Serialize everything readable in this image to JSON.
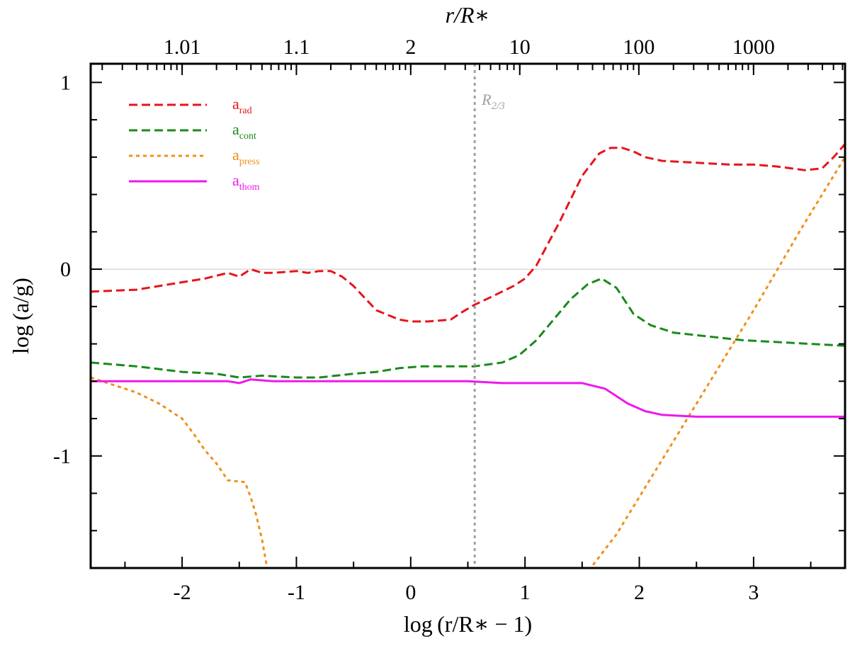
{
  "chart_data": {
    "type": "line",
    "xlabel": "log (r/R∗ − 1)",
    "ylabel": "log (a/g)",
    "top_xlabel": "r/R∗",
    "xlim": [
      -2.8,
      3.8
    ],
    "ylim": [
      -1.6,
      1.1
    ],
    "x_ticks": [
      -2,
      -1,
      0,
      1,
      2,
      3
    ],
    "x_tick_labels": [
      "-2",
      "-1",
      "0",
      "1",
      "2",
      "3"
    ],
    "y_ticks": [
      1,
      0,
      -1
    ],
    "y_tick_labels": [
      "1",
      "0",
      "-1"
    ],
    "top_axis_ticks": [
      {
        "label": "1.01",
        "value": -2.0
      },
      {
        "label": "1.1",
        "value": -1.0
      },
      {
        "label": "2",
        "value": 0.0
      },
      {
        "label": "10",
        "value": 0.954
      },
      {
        "label": "100",
        "value": 1.996
      },
      {
        "label": "1000",
        "value": 2.9996
      }
    ],
    "zero_line": 0,
    "annotation": {
      "base": "R",
      "sub": "2/3",
      "x": 0.56
    },
    "legend_position": "top-left",
    "series": [
      {
        "name_base": "a",
        "name_sub": "rad",
        "color": "#e8141c",
        "dash": "dashed",
        "x": [
          -2.8,
          -2.4,
          -2.0,
          -1.8,
          -1.6,
          -1.5,
          -1.4,
          -1.3,
          -1.2,
          -1.0,
          -0.9,
          -0.8,
          -0.7,
          -0.6,
          -0.5,
          -0.3,
          -0.1,
          0.0,
          0.15,
          0.35,
          0.45,
          0.56,
          0.7,
          0.8,
          0.9,
          1.0,
          1.1,
          1.3,
          1.5,
          1.65,
          1.75,
          1.85,
          1.95,
          2.05,
          2.2,
          2.5,
          2.8,
          3.0,
          3.2,
          3.45,
          3.6,
          3.7,
          3.8
        ],
        "y": [
          -0.12,
          -0.11,
          -0.07,
          -0.05,
          -0.02,
          -0.04,
          0.0,
          -0.02,
          -0.02,
          -0.01,
          -0.02,
          -0.01,
          -0.01,
          -0.04,
          -0.09,
          -0.22,
          -0.27,
          -0.28,
          -0.28,
          -0.27,
          -0.23,
          -0.19,
          -0.15,
          -0.12,
          -0.09,
          -0.05,
          0.02,
          0.25,
          0.5,
          0.62,
          0.65,
          0.65,
          0.63,
          0.6,
          0.58,
          0.57,
          0.56,
          0.56,
          0.55,
          0.53,
          0.54,
          0.6,
          0.67
        ]
      },
      {
        "name_base": "a",
        "name_sub": "cont",
        "color": "#1a8a1a",
        "dash": "dashed",
        "x": [
          -2.8,
          -2.4,
          -2.0,
          -1.7,
          -1.5,
          -1.3,
          -1.0,
          -0.8,
          -0.5,
          -0.3,
          -0.1,
          0.1,
          0.3,
          0.56,
          0.8,
          0.95,
          1.1,
          1.25,
          1.4,
          1.55,
          1.67,
          1.8,
          1.95,
          2.1,
          2.3,
          2.6,
          2.9,
          3.2,
          3.5,
          3.8
        ],
        "y": [
          -0.5,
          -0.52,
          -0.55,
          -0.56,
          -0.58,
          -0.57,
          -0.58,
          -0.58,
          -0.56,
          -0.55,
          -0.53,
          -0.52,
          -0.52,
          -0.52,
          -0.5,
          -0.46,
          -0.38,
          -0.27,
          -0.16,
          -0.08,
          -0.05,
          -0.1,
          -0.24,
          -0.3,
          -0.34,
          -0.36,
          -0.38,
          -0.39,
          -0.4,
          -0.41
        ]
      },
      {
        "name_base": "a",
        "name_sub": "press",
        "color": "#f0901a",
        "dash": "dotted",
        "x": [
          -2.8,
          -2.6,
          -2.4,
          -2.2,
          -2.0,
          -1.9,
          -1.8,
          -1.7,
          -1.6,
          -1.45,
          -1.4,
          -1.35,
          -1.3,
          -1.25,
          1.55,
          1.8,
          2.0,
          2.2,
          2.4,
          2.6,
          2.8,
          3.0,
          3.2,
          3.4,
          3.6,
          3.8
        ],
        "y": [
          -0.58,
          -0.62,
          -0.66,
          -0.72,
          -0.8,
          -0.88,
          -0.97,
          -1.04,
          -1.13,
          -1.14,
          -1.22,
          -1.32,
          -1.45,
          -1.62,
          -1.62,
          -1.42,
          -1.22,
          -1.02,
          -0.82,
          -0.62,
          -0.42,
          -0.22,
          -0.01,
          0.2,
          0.4,
          0.6
        ]
      },
      {
        "name_base": "a",
        "name_sub": "thom",
        "color": "#ee18ee",
        "dash": "solid",
        "x": [
          -2.8,
          -2.4,
          -2.0,
          -1.8,
          -1.6,
          -1.5,
          -1.4,
          -1.2,
          -1.0,
          -0.5,
          0.0,
          0.5,
          0.8,
          1.0,
          1.2,
          1.5,
          1.7,
          1.9,
          2.05,
          2.2,
          2.5,
          3.0,
          3.5,
          3.8
        ],
        "y": [
          -0.6,
          -0.6,
          -0.6,
          -0.6,
          -0.6,
          -0.61,
          -0.59,
          -0.6,
          -0.6,
          -0.6,
          -0.6,
          -0.6,
          -0.61,
          -0.61,
          -0.61,
          -0.61,
          -0.64,
          -0.72,
          -0.76,
          -0.78,
          -0.79,
          -0.79,
          -0.79,
          -0.79
        ]
      }
    ]
  }
}
